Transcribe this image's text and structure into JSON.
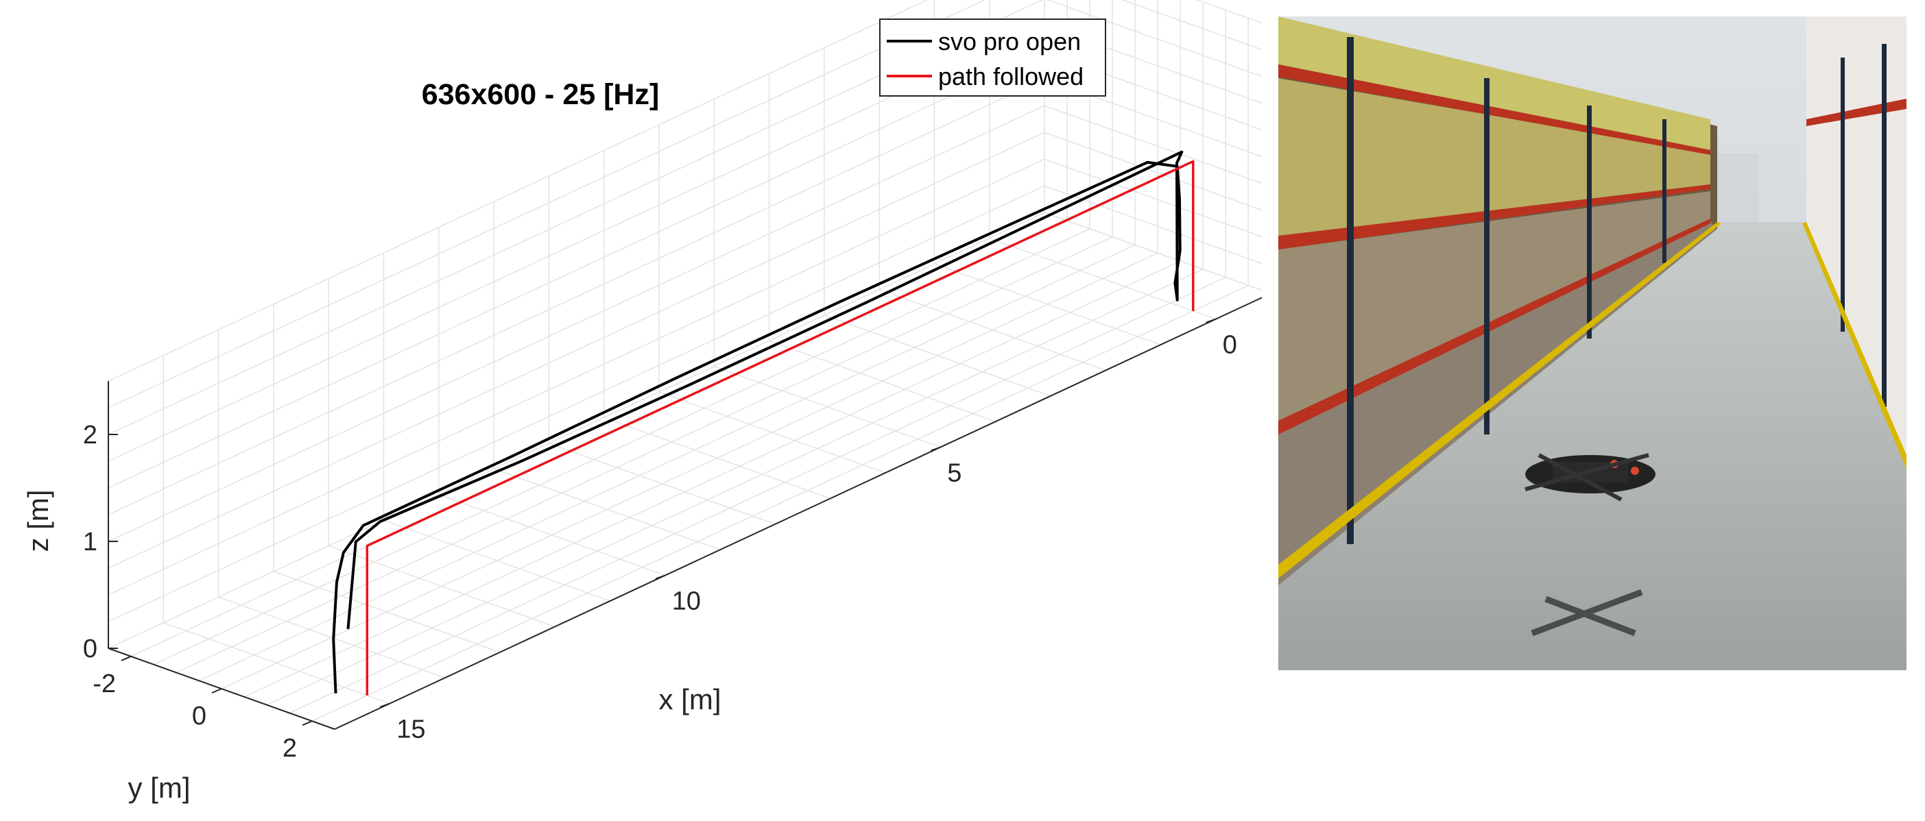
{
  "chart_data": {
    "type": "line",
    "title": "636x600 - 25 [Hz]",
    "xlabel": "x [m]",
    "ylabel": "y [m]",
    "zlabel": "z [m]",
    "x_ticks": [
      "0",
      "5",
      "10",
      "15"
    ],
    "y_ticks": [
      "-2",
      "0",
      "2"
    ],
    "z_ticks": [
      "0",
      "1",
      "2"
    ],
    "xlim": [
      -1,
      16
    ],
    "ylim": [
      -2.5,
      2.5
    ],
    "zlim": [
      0,
      2.5
    ],
    "grid": true,
    "legend_position": "top-right",
    "series": [
      {
        "name": "svo pro open",
        "color": "#000000",
        "x": [
          15.2,
          15.2,
          15.1,
          15.1,
          14.7,
          12,
          9,
          6,
          3,
          0.5,
          0,
          0,
          -0.05,
          0,
          0,
          0.05,
          0,
          2.8,
          5.8,
          9,
          12,
          14.6,
          15,
          15.1
        ],
        "y": [
          1.55,
          1.5,
          1.45,
          1.6,
          1.55,
          1.55,
          1.5,
          1.5,
          1.55,
          1.6,
          1.65,
          1.7,
          1.65,
          1.6,
          1.65,
          1.7,
          1.75,
          1.8,
          1.85,
          1.85,
          1.8,
          1.8,
          1.75,
          1.7
        ],
        "z": [
          0,
          0.5,
          1.0,
          1.3,
          1.45,
          1.45,
          1.45,
          1.45,
          1.45,
          1.45,
          1.3,
          1.0,
          0.5,
          0.2,
          0.05,
          1.35,
          1.45,
          1.45,
          1.45,
          1.45,
          1.45,
          1.5,
          1.4,
          0.6
        ]
      },
      {
        "name": "path followed",
        "color": "#e8141b",
        "x": [
          15,
          15,
          0,
          0
        ],
        "y": [
          2,
          2,
          2,
          2
        ],
        "z": [
          0,
          1.4,
          1.4,
          0
        ]
      }
    ]
  },
  "photo": {
    "description_icon": "warehouse-drone-photo-icon",
    "floor_color": "#a9aeaa",
    "shelf_color": "#b8321f",
    "stripe_color": "#d8b800"
  }
}
